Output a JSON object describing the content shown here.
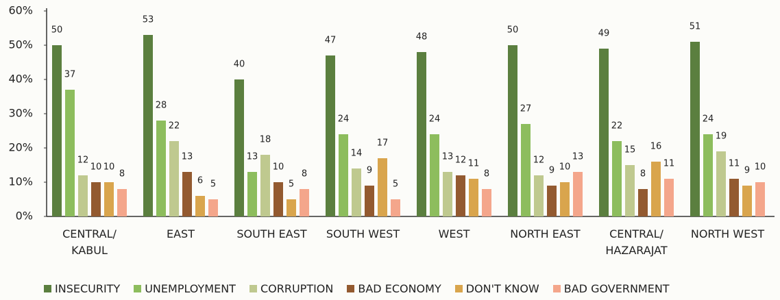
{
  "chart_data": {
    "type": "bar",
    "categories": [
      "CENTRAL/\nKABUL",
      "EAST",
      "SOUTH EAST",
      "SOUTH WEST",
      "WEST",
      "NORTH EAST",
      "CENTRAL/\nHAZARAJAT",
      "NORTH WEST"
    ],
    "series": [
      {
        "name": "INSECURITY",
        "color": "#5b7f3f",
        "values": [
          50,
          53,
          40,
          47,
          48,
          50,
          49,
          51
        ]
      },
      {
        "name": "UNEMPLOYMENT",
        "color": "#8dbd5d",
        "values": [
          37,
          28,
          13,
          24,
          24,
          27,
          22,
          24
        ]
      },
      {
        "name": "CORRUPTION",
        "color": "#bfc98f",
        "values": [
          12,
          22,
          18,
          14,
          13,
          12,
          15,
          19
        ]
      },
      {
        "name": "BAD ECONOMY",
        "color": "#935a30",
        "values": [
          10,
          13,
          10,
          9,
          12,
          9,
          8,
          11
        ]
      },
      {
        "name": "DON'T KNOW",
        "color": "#d9a54d",
        "values": [
          10,
          6,
          5,
          17,
          11,
          10,
          16,
          9
        ]
      },
      {
        "name": "BAD GOVERNMENT",
        "color": "#f4a68b",
        "values": [
          8,
          5,
          8,
          5,
          8,
          13,
          11,
          10
        ]
      }
    ],
    "ylim": [
      0,
      60
    ],
    "yticks": [
      {
        "value": 0,
        "label": "0%"
      },
      {
        "value": 10,
        "label": "10%"
      },
      {
        "value": 20,
        "label": "20%"
      },
      {
        "value": 30,
        "label": "30%"
      },
      {
        "value": 40,
        "label": "40%"
      },
      {
        "value": 50,
        "label": "50%"
      },
      {
        "value": 60,
        "label": "60%"
      }
    ],
    "legend": "bottom"
  }
}
